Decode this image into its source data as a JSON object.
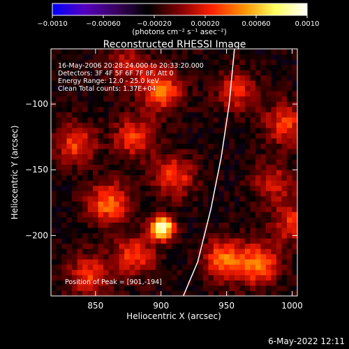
{
  "chart_data": {
    "type": "heatmap",
    "title": "Reconstructed RHESSI Image",
    "xlabel": "Heliocentric X (arcsec)",
    "ylabel": "Heliocentric Y (arcsec)",
    "xlim": [
      816,
      1004
    ],
    "ylim": [
      -246,
      -58
    ],
    "x_ticks": [
      850,
      900,
      950,
      1000
    ],
    "x_tick_labels": [
      "850",
      "900",
      "950",
      "1000"
    ],
    "y_ticks": [
      -100,
      -150,
      -200
    ],
    "y_tick_labels": [
      "−100",
      "−150",
      "−200"
    ],
    "colorbar": {
      "range": [
        -0.001,
        0.001
      ],
      "ticks": [
        -0.001,
        -0.0006,
        -0.0002,
        0.0002,
        0.0006,
        0.001
      ],
      "tick_labels": [
        "−0.0010",
        "−0.00060",
        "−0.00020",
        "0.00020",
        "0.00060",
        "0.0010"
      ],
      "label": "(photons cm⁻² s⁻¹ asec⁻²)",
      "colors": [
        "#0000ff",
        "#5500c0",
        "#3a0060",
        "#000000",
        "#800000",
        "#ff2000",
        "#ff9000",
        "#ffff60",
        "#ffffff"
      ]
    },
    "info_lines": [
      "16-May-2006 20:28:24.000 to 20:33:20.000",
      "Detectors: 3F 4F 5F 6F 7F 8F, Att 0",
      "Energy Range: 12.0 - 25.0 keV",
      "Clean     Total counts: 1.37E+04"
    ],
    "peak_label": "Position of Peak = [901,-194]",
    "peak": [
      901,
      -194
    ],
    "limb_line": [
      [
        917,
        -246
      ],
      [
        928,
        -220
      ],
      [
        938,
        -180
      ],
      [
        946,
        -140
      ],
      [
        952,
        -100
      ],
      [
        956,
        -58
      ]
    ],
    "sources": [
      {
        "x": 901,
        "y": -194,
        "value": 0.001
      },
      {
        "x": 948,
        "y": -218,
        "value": 0.0005
      },
      {
        "x": 975,
        "y": -222,
        "value": 0.0005
      },
      {
        "x": 900,
        "y": -90,
        "value": 0.0005
      },
      {
        "x": 835,
        "y": -130,
        "value": 0.0004
      },
      {
        "x": 860,
        "y": -175,
        "value": 0.0005
      },
      {
        "x": 880,
        "y": -125,
        "value": 0.0004
      },
      {
        "x": 910,
        "y": -155,
        "value": 0.0004
      },
      {
        "x": 958,
        "y": -90,
        "value": 0.00035
      },
      {
        "x": 995,
        "y": -115,
        "value": 0.0004
      },
      {
        "x": 985,
        "y": -160,
        "value": 0.0003
      },
      {
        "x": 845,
        "y": -230,
        "value": 0.0004
      },
      {
        "x": 880,
        "y": -215,
        "value": 0.0004
      },
      {
        "x": 875,
        "y": -70,
        "value": 0.0003
      },
      {
        "x": 1000,
        "y": -190,
        "value": 0.00035
      }
    ]
  },
  "footer": {
    "timestamp": "6-May-2022 12:11"
  }
}
